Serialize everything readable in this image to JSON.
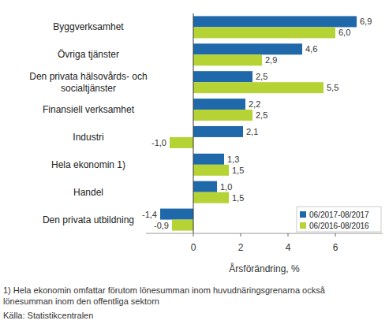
{
  "chart_data": {
    "type": "bar",
    "orientation": "horizontal",
    "categories": [
      "Byggverksamhet",
      "Övriga tjänster",
      "Den privata hälsovårds- och\nsocialtjänster",
      "Finansiell verksamhet",
      "Industri",
      "Hela ekonomin 1)",
      "Handel",
      "Den privata utbildning"
    ],
    "series": [
      {
        "name": "06/2017-08/2017",
        "color": "#1f69aa",
        "values": [
          6.9,
          4.6,
          2.5,
          2.2,
          2.1,
          1.3,
          1.0,
          -1.4
        ],
        "value_labels": [
          "6,9",
          "4,6",
          "2,5",
          "2,2",
          "2,1",
          "1,3",
          "1,0",
          "-1,4"
        ]
      },
      {
        "name": "06/2016-08/2016",
        "color": "#b5d334",
        "values": [
          6.0,
          2.9,
          5.5,
          2.5,
          -1.0,
          1.5,
          1.5,
          -0.9
        ],
        "value_labels": [
          "6,0",
          "2,9",
          "5,5",
          "2,5",
          "-1,0",
          "1,5",
          "1,5",
          "-0,9"
        ]
      }
    ],
    "x_label": "Årsförändring, %",
    "xlim": [
      -2,
      8
    ],
    "xticks": [
      0,
      2,
      4,
      6
    ],
    "grid": false,
    "legend": "lower right",
    "data_labels": true,
    "notes": [
      "1) Hela ekonomin omfattar förutom lönesumman inom huvudnäringsgrenarna också",
      "lönesumman inom den offentliga sektorn"
    ],
    "source": "Källa: Statistikcentralen"
  }
}
